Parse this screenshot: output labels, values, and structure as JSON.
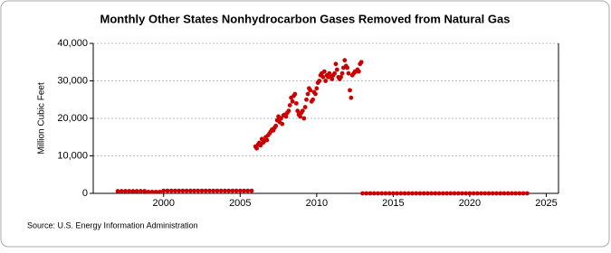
{
  "chart_data": {
    "type": "scatter",
    "title": "Monthly Other States Nonhydrocarbon Gases Removed from Natural Gas",
    "y_label": "Million Cubic Feet",
    "source": "Source: U.S. Energy Information Administration",
    "xlim": [
      1995.4,
      2025.8
    ],
    "xticks": [
      2000,
      2005,
      2010,
      2015,
      2020,
      2025
    ],
    "ylim": [
      0,
      40000
    ],
    "yticks": [
      0,
      {
        "value": 10000,
        "label": "10,000"
      },
      {
        "value": 20000,
        "label": "20,000"
      },
      {
        "value": 30000,
        "label": "30,000"
      },
      {
        "value": 40000,
        "label": "40,000"
      }
    ],
    "grid": true,
    "series": [
      {
        "color": "#cc0000",
        "x": [
          1997,
          1997.25,
          1997.5,
          1997.75,
          1998,
          1998.25,
          1998.5,
          1998.75,
          1999,
          1999.25,
          1999.5,
          1999.75,
          2000,
          2000.25,
          2000.5,
          2000.75,
          2001,
          2001.25,
          2001.5,
          2001.75,
          2002,
          2002.25,
          2002.5,
          2002.75,
          2003,
          2003.25,
          2003.5,
          2003.75,
          2004,
          2004.25,
          2004.5,
          2004.75,
          2005,
          2005.25,
          2005.5,
          2005.75,
          2006,
          2006.08,
          2006.17,
          2006.25,
          2006.33,
          2006.42,
          2006.5,
          2006.58,
          2006.67,
          2006.75,
          2006.83,
          2006.92,
          2007,
          2007.08,
          2007.17,
          2007.25,
          2007.33,
          2007.42,
          2007.5,
          2007.58,
          2007.67,
          2007.75,
          2007.83,
          2007.92,
          2008,
          2008.08,
          2008.17,
          2008.25,
          2008.33,
          2008.42,
          2008.5,
          2008.58,
          2008.67,
          2008.75,
          2008.83,
          2008.92,
          2009,
          2009.08,
          2009.17,
          2009.25,
          2009.33,
          2009.42,
          2009.5,
          2009.58,
          2009.67,
          2009.75,
          2009.83,
          2009.92,
          2010,
          2010.08,
          2010.17,
          2010.25,
          2010.33,
          2010.42,
          2010.5,
          2010.58,
          2010.67,
          2010.75,
          2010.83,
          2010.92,
          2011,
          2011.08,
          2011.17,
          2011.25,
          2011.33,
          2011.42,
          2011.5,
          2011.58,
          2011.67,
          2011.75,
          2011.83,
          2011.92,
          2012,
          2012.08,
          2012.17,
          2012.25,
          2012.33,
          2012.42,
          2012.5,
          2012.58,
          2012.67,
          2012.75,
          2012.83,
          2012.92,
          2013,
          2013.25,
          2013.5,
          2013.75,
          2014,
          2014.25,
          2014.5,
          2014.75,
          2015,
          2015.25,
          2015.5,
          2015.75,
          2016,
          2016.25,
          2016.5,
          2016.75,
          2017,
          2017.25,
          2017.5,
          2017.75,
          2018,
          2018.25,
          2018.5,
          2018.75,
          2019,
          2019.25,
          2019.5,
          2019.75,
          2020,
          2020.25,
          2020.5,
          2020.75,
          2021,
          2021.25,
          2021.5,
          2021.75,
          2022,
          2022.25,
          2022.5,
          2022.75,
          2023,
          2023.25,
          2023.5,
          2023.75
        ],
        "values": [
          600,
          600,
          600,
          600,
          600,
          600,
          600,
          600,
          400,
          400,
          400,
          400,
          700,
          700,
          700,
          700,
          700,
          700,
          700,
          700,
          700,
          700,
          700,
          700,
          700,
          700,
          700,
          700,
          700,
          700,
          700,
          700,
          700,
          700,
          700,
          700,
          12500,
          12000,
          13000,
          13500,
          12800,
          14500,
          13500,
          14000,
          15000,
          14200,
          15500,
          16000,
          16500,
          17000,
          16800,
          17500,
          18000,
          19500,
          20500,
          19000,
          20000,
          18500,
          20800,
          21000,
          20500,
          21500,
          22000,
          23500,
          25500,
          24500,
          26000,
          26500,
          24000,
          22000,
          21000,
          20500,
          21500,
          22000,
          20000,
          23000,
          25000,
          26500,
          28000,
          27500,
          24500,
          25000,
          27000,
          26500,
          28000,
          29500,
          30000,
          31500,
          32000,
          31000,
          32500,
          30000,
          31500,
          31000,
          32000,
          31000,
          30500,
          31500,
          32000,
          34500,
          33000,
          31000,
          30500,
          31000,
          32000,
          33500,
          35500,
          34000,
          33500,
          32000,
          27500,
          25500,
          31500,
          32000,
          32500,
          32500,
          33000,
          32500,
          34500,
          35000,
          0,
          0,
          0,
          0,
          0,
          0,
          0,
          0,
          0,
          0,
          0,
          0,
          0,
          0,
          0,
          0,
          0,
          0,
          0,
          0,
          0,
          0,
          0,
          0,
          0,
          0,
          0,
          0,
          0,
          0,
          0,
          0,
          0,
          0,
          0,
          0,
          0,
          0,
          0,
          0,
          0,
          0,
          0,
          0
        ]
      }
    ]
  }
}
